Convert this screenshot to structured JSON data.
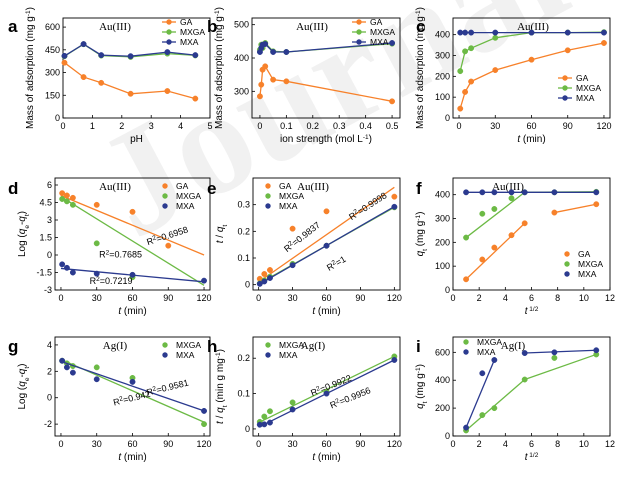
{
  "colors": {
    "GA": "#f7812a",
    "MXGA": "#6cba45",
    "MXA": "#2b3a8f",
    "axis": "#000000"
  },
  "watermark": "Journal Pre-proof",
  "chart_data": [
    {
      "id": "a",
      "type": "line",
      "title": "Au(III)",
      "xlabel": "pH",
      "ylabel": "Mass of adsorption (mg g⁻¹)",
      "xlim": [
        0,
        5
      ],
      "ylim": [
        0,
        660
      ],
      "xticks": [
        0,
        1,
        2,
        3,
        4,
        5
      ],
      "yticks": [
        0,
        150,
        300,
        450,
        600
      ],
      "legend": "top-right",
      "series": [
        {
          "name": "GA",
          "color": "#f7812a",
          "marker": "circle",
          "x": [
            0.05,
            0.7,
            1.3,
            2.3,
            3.55,
            4.5
          ],
          "y": [
            365,
            270,
            232,
            160,
            178,
            128
          ]
        },
        {
          "name": "MXGA",
          "color": "#6cba45",
          "marker": "circle",
          "x": [
            0.05,
            0.7,
            1.3,
            2.3,
            3.55,
            4.5
          ],
          "y": [
            408,
            487,
            412,
            403,
            425,
            413
          ]
        },
        {
          "name": "MXA",
          "color": "#2b3a8f",
          "marker": "circle",
          "x": [
            0.05,
            0.7,
            1.3,
            2.3,
            3.55,
            4.5
          ],
          "y": [
            410,
            488,
            415,
            408,
            435,
            415
          ]
        }
      ]
    },
    {
      "id": "b",
      "type": "line",
      "title": "Au(III)",
      "xlabel": "ion strength (mol L⁻¹)",
      "ylabel": "Mass of adsorption (mg g⁻¹)",
      "xlim": [
        -0.03,
        0.53
      ],
      "ylim": [
        220,
        520
      ],
      "xticks": [
        0.0,
        0.1,
        0.2,
        0.3,
        0.4,
        0.5
      ],
      "yticks": [
        300,
        400,
        500
      ],
      "legend": "top-right",
      "series": [
        {
          "name": "GA",
          "color": "#f7812a",
          "marker": "circle",
          "x": [
            0,
            0.005,
            0.01,
            0.02,
            0.05,
            0.1,
            0.5
          ],
          "y": [
            285,
            320,
            365,
            375,
            335,
            330,
            270
          ]
        },
        {
          "name": "MXGA",
          "color": "#6cba45",
          "marker": "circle",
          "x": [
            0,
            0.005,
            0.01,
            0.02,
            0.05,
            0.1,
            0.5
          ],
          "y": [
            425,
            440,
            430,
            445,
            420,
            418,
            443
          ]
        },
        {
          "name": "MXA",
          "color": "#2b3a8f",
          "marker": "circle",
          "x": [
            0,
            0.005,
            0.01,
            0.02,
            0.05,
            0.1,
            0.5
          ],
          "y": [
            418,
            430,
            440,
            442,
            418,
            418,
            445
          ]
        }
      ]
    },
    {
      "id": "c",
      "type": "line",
      "title": "Au(III)",
      "xlabel": "t (min)",
      "ylabel": "Mass of adsorption (mg g⁻¹)",
      "xlim": [
        -5,
        125
      ],
      "ylim": [
        0,
        480
      ],
      "xticks": [
        0,
        30,
        60,
        90,
        120
      ],
      "yticks": [
        0,
        100,
        200,
        300,
        400
      ],
      "legend": "bottom-right",
      "series": [
        {
          "name": "GA",
          "color": "#f7812a",
          "marker": "circle",
          "x": [
            1,
            5,
            10,
            30,
            60,
            90,
            120
          ],
          "y": [
            45,
            125,
            175,
            230,
            280,
            325,
            360
          ]
        },
        {
          "name": "MXGA",
          "color": "#6cba45",
          "marker": "circle",
          "x": [
            1,
            5,
            10,
            30,
            60,
            90,
            120
          ],
          "y": [
            225,
            320,
            335,
            385,
            410,
            410,
            412
          ]
        },
        {
          "name": "MXA",
          "color": "#2b3a8f",
          "marker": "circle",
          "x": [
            1,
            5,
            10,
            30,
            60,
            90,
            120
          ],
          "y": [
            410,
            410,
            410,
            410,
            410,
            410,
            410
          ]
        }
      ]
    },
    {
      "id": "d",
      "type": "scatter",
      "title": "Au(III)",
      "xlabel": "t (min)",
      "ylabel": "Log (qe-qt)",
      "xlim": [
        -5,
        125
      ],
      "ylim": [
        -3.0,
        6.6
      ],
      "xticks": [
        0,
        30,
        60,
        90,
        120
      ],
      "yticks": [
        -3.0,
        -1.5,
        0.0,
        1.5,
        3.0,
        4.5,
        6.0
      ],
      "legend": "top-right",
      "series": [
        {
          "name": "GA",
          "color": "#f7812a",
          "x": [
            1,
            5,
            10,
            30,
            60,
            90
          ],
          "y": [
            5.3,
            5.1,
            4.9,
            4.3,
            3.7,
            0.8
          ],
          "fit": [
            [
              0,
              5.1
            ],
            [
              120,
              0.0
            ]
          ]
        },
        {
          "name": "MXGA",
          "color": "#6cba45",
          "x": [
            1,
            5,
            10,
            30,
            60
          ],
          "y": [
            4.8,
            4.6,
            4.3,
            1.0,
            -1.9
          ],
          "fit": [
            [
              0,
              5.0
            ],
            [
              120,
              -2.6
            ]
          ]
        },
        {
          "name": "MXA",
          "color": "#2b3a8f",
          "x": [
            1,
            5,
            10,
            30,
            60,
            120
          ],
          "y": [
            -0.8,
            -1.1,
            -1.5,
            -1.6,
            -1.7,
            -2.2
          ],
          "fit": [
            [
              0,
              -1.15
            ],
            [
              120,
              -2.3
            ]
          ]
        }
      ],
      "annotations": [
        {
          "text": "R² =0.6958",
          "x": 90,
          "y": 1.4,
          "rotate": -18
        },
        {
          "text": "R² =0.7685",
          "x": 50,
          "y": -0.2,
          "rotate": 0
        },
        {
          "text": "R² =0.7219",
          "x": 42,
          "y": -2.5,
          "rotate": 0
        }
      ]
    },
    {
      "id": "e",
      "type": "scatter",
      "title": "Au(III)",
      "xlabel": "t (min)",
      "ylabel": "t / qt",
      "xlim": [
        -5,
        125
      ],
      "ylim": [
        -0.02,
        0.4
      ],
      "xticks": [
        0,
        30,
        60,
        90,
        120
      ],
      "yticks": [
        0.0,
        0.1,
        0.2,
        0.3
      ],
      "legend": "top-left",
      "series": [
        {
          "name": "GA",
          "color": "#f7812a",
          "x": [
            1,
            5,
            10,
            30,
            60,
            120
          ],
          "y": [
            0.022,
            0.04,
            0.055,
            0.21,
            0.275,
            0.33
          ],
          "fit": [
            [
              0,
              0.01
            ],
            [
              120,
              0.365
            ]
          ]
        },
        {
          "name": "MXGA",
          "color": "#6cba45",
          "x": [
            1,
            5,
            10,
            30,
            60,
            120
          ],
          "y": [
            0.005,
            0.016,
            0.03,
            0.078,
            0.146,
            0.29
          ],
          "fit": [
            [
              0,
              0.003
            ],
            [
              120,
              0.29
            ]
          ]
        },
        {
          "name": "MXA",
          "color": "#2b3a8f",
          "x": [
            1,
            5,
            10,
            30,
            60,
            120
          ],
          "y": [
            0.003,
            0.012,
            0.025,
            0.073,
            0.146,
            0.292
          ],
          "fit": [
            [
              0,
              0.0
            ],
            [
              120,
              0.293
            ]
          ]
        }
      ],
      "annotations": [
        {
          "text": "R² =0.9837",
          "x": 40,
          "y": 0.17,
          "rotate": -38
        },
        {
          "text": "R² =0.9998",
          "x": 98,
          "y": 0.285,
          "rotate": -33
        },
        {
          "text": "R² =1",
          "x": 70,
          "y": 0.07,
          "rotate": -30
        }
      ]
    },
    {
      "id": "f",
      "type": "scatter",
      "title": "Au(III)",
      "xlabel": "t 1/2",
      "ylabel": "qt (mg g⁻¹)",
      "xlim": [
        0,
        12
      ],
      "ylim": [
        0,
        470
      ],
      "xticks": [
        0,
        2,
        4,
        6,
        8,
        10,
        12
      ],
      "yticks": [
        0,
        100,
        200,
        300,
        400
      ],
      "legend": "bottom-right",
      "series": [
        {
          "name": "GA",
          "color": "#f7812a",
          "x": [
            1,
            2.24,
            3.16,
            4.47,
            5.48,
            7.75,
            10.95
          ],
          "y": [
            45,
            128,
            178,
            230,
            280,
            325,
            360
          ],
          "segments": [
            [
              0,
              4
            ],
            [
              5,
              6
            ]
          ]
        },
        {
          "name": "MXGA",
          "color": "#6cba45",
          "x": [
            1,
            2.24,
            3.16,
            4.47,
            5.48,
            7.75,
            10.95
          ],
          "y": [
            220,
            320,
            340,
            385,
            410,
            410,
            412
          ],
          "segments": [
            [
              0,
              4
            ],
            [
              4,
              6
            ]
          ]
        },
        {
          "name": "MXA",
          "color": "#2b3a8f",
          "x": [
            1,
            2.24,
            3.16,
            4.47,
            5.48,
            7.75,
            10.95
          ],
          "y": [
            410,
            410,
            410,
            410,
            410,
            410,
            410
          ],
          "segments": [
            [
              0,
              6
            ]
          ]
        }
      ]
    },
    {
      "id": "g",
      "type": "scatter",
      "title": "Ag(I)",
      "xlabel": "t (min)",
      "ylabel": "Log (qe-qt)",
      "xlim": [
        -5,
        125
      ],
      "ylim": [
        -2.9,
        4.6
      ],
      "xticks": [
        0,
        30,
        60,
        90,
        120
      ],
      "yticks": [
        -2,
        0,
        2,
        4
      ],
      "legend": "top-right",
      "series": [
        {
          "name": "MXGA",
          "color": "#6cba45",
          "x": [
            1,
            5,
            10,
            30,
            60,
            120
          ],
          "y": [
            2.8,
            2.6,
            2.4,
            2.3,
            1.5,
            -2.0
          ],
          "fit": [
            [
              0,
              2.9
            ],
            [
              120,
              -1.85
            ]
          ]
        },
        {
          "name": "MXA",
          "color": "#2b3a8f",
          "x": [
            1,
            5,
            10,
            30,
            60,
            120
          ],
          "y": [
            2.8,
            2.3,
            1.9,
            1.4,
            1.2,
            -1.0
          ],
          "fit": [
            [
              0,
              2.75
            ],
            [
              120,
              -1.0
            ]
          ]
        }
      ],
      "annotations": [
        {
          "text": "R² =0.9581",
          "x": 90,
          "y": 0.55,
          "rotate": -14
        },
        {
          "text": "R² =0.942",
          "x": 60,
          "y": -0.25,
          "rotate": -14
        }
      ]
    },
    {
      "id": "h",
      "type": "scatter",
      "title": "Ag(I)",
      "xlabel": "t (min)",
      "ylabel": "t / qt (min g mg⁻¹)",
      "xlim": [
        -5,
        125
      ],
      "ylim": [
        -0.02,
        0.26
      ],
      "xticks": [
        0,
        30,
        60,
        90,
        120
      ],
      "yticks": [
        0.0,
        0.1,
        0.2
      ],
      "legend": "top-left",
      "series": [
        {
          "name": "MXGA",
          "color": "#6cba45",
          "x": [
            1,
            5,
            10,
            30,
            60,
            120
          ],
          "y": [
            0.02,
            0.035,
            0.05,
            0.075,
            0.105,
            0.205
          ],
          "fit": [
            [
              0,
              0.018
            ],
            [
              120,
              0.205
            ]
          ]
        },
        {
          "name": "MXA",
          "color": "#2b3a8f",
          "x": [
            1,
            5,
            10,
            30,
            60,
            120
          ],
          "y": [
            0.012,
            0.013,
            0.018,
            0.055,
            0.1,
            0.195
          ],
          "fit": [
            [
              0,
              0.005
            ],
            [
              120,
              0.195
            ]
          ]
        }
      ],
      "annotations": [
        {
          "text": "R² =0.9922",
          "x": 65,
          "y": 0.115,
          "rotate": -22
        },
        {
          "text": "R² =0.9956",
          "x": 82,
          "y": 0.08,
          "rotate": -22
        }
      ]
    },
    {
      "id": "i",
      "type": "scatter",
      "title": "Ag(I)",
      "xlabel": "t 1/2",
      "ylabel": "qt (mg g⁻¹)",
      "xlim": [
        0,
        12
      ],
      "ylim": [
        0,
        710
      ],
      "xticks": [
        0,
        2,
        4,
        6,
        8,
        10,
        12
      ],
      "yticks": [
        0,
        200,
        400,
        600
      ],
      "legend": "top-left",
      "series": [
        {
          "name": "MXGA",
          "color": "#6cba45",
          "x": [
            1,
            2.24,
            3.16,
            5.48,
            7.75,
            10.95
          ],
          "y": [
            40,
            150,
            200,
            405,
            560,
            585
          ],
          "segments": [
            [
              0,
              3
            ],
            [
              3,
              5
            ]
          ]
        },
        {
          "name": "MXA",
          "color": "#2b3a8f",
          "x": [
            1,
            2.24,
            3.16,
            5.48,
            7.75,
            10.95
          ],
          "y": [
            60,
            450,
            545,
            595,
            600,
            615
          ],
          "segments": [
            [
              0,
              2
            ],
            [
              3,
              5
            ]
          ]
        }
      ]
    }
  ]
}
